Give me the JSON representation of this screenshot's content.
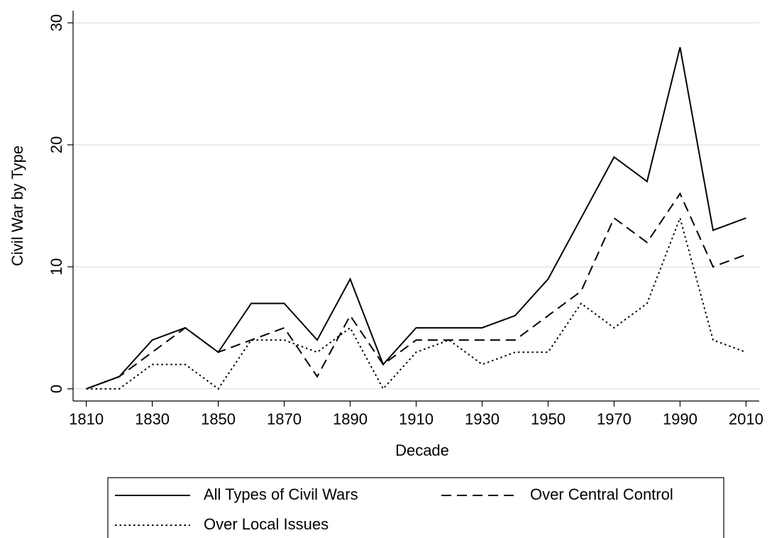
{
  "chart_data": {
    "type": "line",
    "x_label": "Decade",
    "y_label": "Civil War by Type",
    "x": [
      1810,
      1820,
      1830,
      1840,
      1850,
      1860,
      1870,
      1880,
      1890,
      1900,
      1910,
      1920,
      1930,
      1940,
      1950,
      1960,
      1970,
      1980,
      1990,
      2000,
      2010
    ],
    "series": [
      {
        "name": "All Types of Civil Wars",
        "color": "#000000",
        "dash": "solid",
        "values": [
          0,
          1,
          4,
          5,
          3,
          7,
          7,
          4,
          9,
          2,
          5,
          5,
          5,
          6,
          9,
          14,
          19,
          17,
          28,
          13,
          14
        ]
      },
      {
        "name": "Over Central Control",
        "color": "#000000",
        "dash": "dashed",
        "values": [
          0,
          1,
          3,
          5,
          3,
          4,
          5,
          1,
          6,
          2,
          4,
          4,
          4,
          4,
          6,
          8,
          14,
          12,
          16,
          10,
          11
        ]
      },
      {
        "name": "Over Local Issues",
        "color": "#000000",
        "dash": "dotted",
        "values": [
          0,
          0,
          2,
          2,
          0,
          4,
          4,
          3,
          5,
          0,
          3,
          4,
          2,
          3,
          3,
          7,
          5,
          7,
          14,
          4,
          3
        ]
      }
    ],
    "xlim": [
      1806,
      2014
    ],
    "ylim": [
      -1,
      31
    ],
    "xticks": [
      1810,
      1830,
      1850,
      1870,
      1890,
      1910,
      1930,
      1950,
      1970,
      1990,
      2010
    ],
    "yticks": [
      0,
      10,
      20,
      30
    ],
    "grid": true,
    "legend": "bottom"
  }
}
